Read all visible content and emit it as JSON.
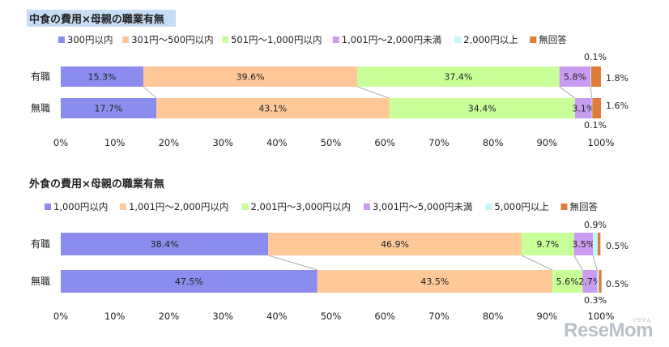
{
  "chart_data": [
    {
      "type": "bar",
      "orientation": "horizontal",
      "stacked": true,
      "title": "中食の費用×母親の職業有無",
      "categories": [
        "有職",
        "無職"
      ],
      "series": [
        {
          "name": "300円以内",
          "values": [
            15.3,
            17.7
          ]
        },
        {
          "name": "301円～500円以内",
          "values": [
            39.6,
            43.1
          ]
        },
        {
          "name": "501円～1,000円以内",
          "values": [
            37.4,
            34.4
          ]
        },
        {
          "name": "1,001円～2,000円未満",
          "values": [
            5.8,
            3.1
          ]
        },
        {
          "name": "2,000円以上",
          "values": [
            0.1,
            0.1
          ]
        },
        {
          "name": "無回答",
          "values": [
            1.8,
            1.6
          ]
        }
      ],
      "value_labels": [
        [
          "15.3%",
          "39.6%",
          "37.4%",
          "5.8%",
          "0.1%",
          "1.8%"
        ],
        [
          "17.7%",
          "43.1%",
          "34.4%",
          "3.1%",
          "0.1%",
          "1.6%"
        ]
      ],
      "xlim": [
        0,
        100
      ],
      "xticks": [
        "0%",
        "10%",
        "20%",
        "30%",
        "40%",
        "50%",
        "60%",
        "70%",
        "80%",
        "90%",
        "100%"
      ],
      "legend": "top",
      "colors": [
        "#8c8cee",
        "#ffc899",
        "#c8ff99",
        "#c99cf2",
        "#c2f7f7",
        "#e07b39"
      ]
    },
    {
      "type": "bar",
      "orientation": "horizontal",
      "stacked": true,
      "title": "外食の費用×母親の職業有無",
      "categories": [
        "有職",
        "無職"
      ],
      "series": [
        {
          "name": "1,000円以内",
          "values": [
            38.4,
            47.5
          ]
        },
        {
          "name": "1,001円～2,000円以内",
          "values": [
            46.9,
            43.5
          ]
        },
        {
          "name": "2,001円～3,000円以内",
          "values": [
            9.7,
            5.6
          ]
        },
        {
          "name": "3,001円～5,000円未満",
          "values": [
            3.5,
            2.7
          ]
        },
        {
          "name": "5,000円以上",
          "values": [
            0.9,
            0.3
          ]
        },
        {
          "name": "無回答",
          "values": [
            0.5,
            0.5
          ]
        }
      ],
      "value_labels": [
        [
          "38.4%",
          "46.9%",
          "9.7%",
          "3.5%",
          "0.9%",
          "0.5%"
        ],
        [
          "47.5%",
          "43.5%",
          "5.6%",
          "2.7%",
          "0.3%",
          "0.5%"
        ]
      ],
      "xlim": [
        0,
        100
      ],
      "xticks": [
        "0%",
        "10%",
        "20%",
        "30%",
        "40%",
        "50%",
        "60%",
        "70%",
        "80%",
        "90%",
        "100%"
      ],
      "legend": "top",
      "colors": [
        "#8c8cee",
        "#ffc899",
        "#c8ff99",
        "#c99cf2",
        "#c2f7f7",
        "#e07b39"
      ]
    }
  ],
  "watermark": {
    "text": "ReseMom",
    "small": "リセマム"
  }
}
